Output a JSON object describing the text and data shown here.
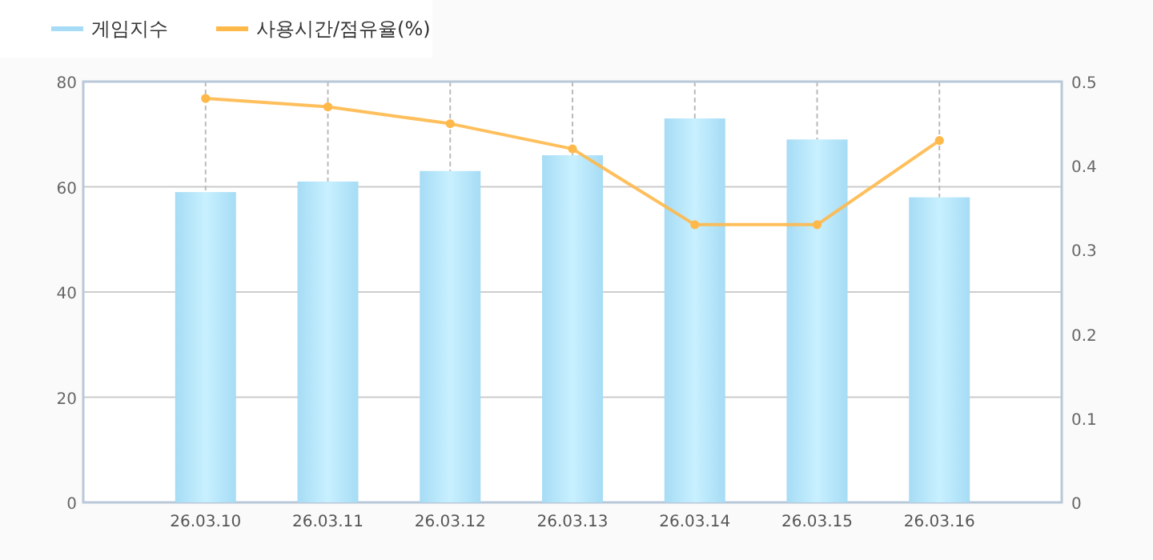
{
  "chart_data": {
    "type": "bar",
    "categories": [
      "26.03.10",
      "26.03.11",
      "26.03.12",
      "26.03.13",
      "26.03.14",
      "26.03.15",
      "26.03.16"
    ],
    "series": [
      {
        "name": "게임지수",
        "color": "#a6dcf5",
        "values": [
          59,
          61,
          63,
          66,
          73,
          69,
          58
        ]
      },
      {
        "name": "사용시간/점유율(%)",
        "type": "line",
        "axis": "y2",
        "color": "#ffb84a",
        "values": [
          0.48,
          0.47,
          0.45,
          0.42,
          0.33,
          0.33,
          0.43
        ]
      }
    ],
    "ylim": [
      0,
      80
    ],
    "yticks": [
      0,
      20,
      40,
      60,
      80
    ],
    "y2lim": [
      0,
      0.5
    ],
    "y2ticks": [
      0,
      0.1,
      0.2,
      0.3,
      0.4,
      0.5
    ],
    "grid": true,
    "legend": "top left",
    "marker": "circle"
  }
}
